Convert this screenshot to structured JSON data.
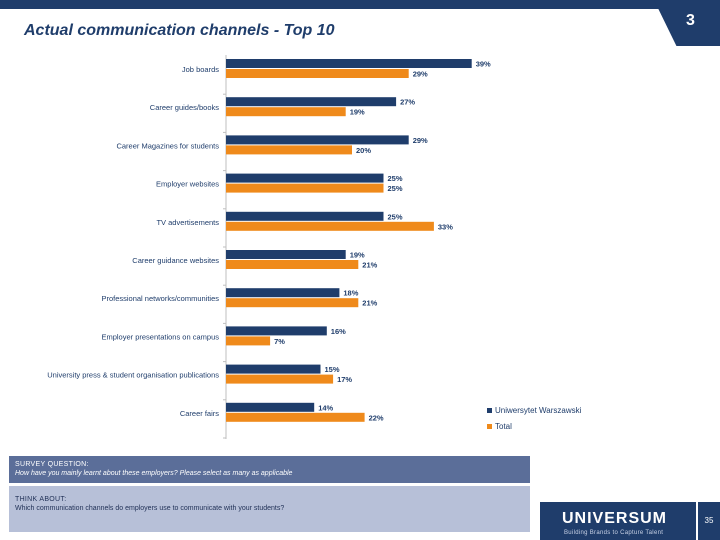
{
  "slide": {
    "title": "Actual communication channels - Top 10",
    "page_number": "3",
    "footer_page": "35"
  },
  "colors": {
    "series_uw": "#1f3d6b",
    "series_total": "#ef8a1b",
    "header": "#1f3d6b"
  },
  "survey": {
    "label": "SURVEY QUESTION:",
    "question": "How have you mainly learnt about these employers? Please select as many as applicable"
  },
  "think": {
    "label": "THINK ABOUT:",
    "text": "Which communication channels do employers use to communicate with your students?"
  },
  "logo": {
    "name": "UNIVERSUM",
    "tagline": "Building Brands to Capture Talent"
  },
  "chart_data": {
    "type": "bar",
    "orientation": "horizontal",
    "categories": [
      "Job boards",
      "Career guides/books",
      "Career Magazines for students",
      "Employer websites",
      "TV advertisements",
      "Career guidance websites",
      "Professional networks/communities",
      "Employer presentations on campus",
      "University press & student organisation publications",
      "Career fairs"
    ],
    "series": [
      {
        "name": "Uniwersytet Warszawski",
        "values": [
          39,
          27,
          29,
          25,
          25,
          19,
          18,
          16,
          15,
          14
        ],
        "labels": [
          "39%",
          "27%",
          "29%",
          "25%",
          "25%",
          "19%",
          "18%",
          "16%",
          "15%",
          "14%"
        ]
      },
      {
        "name": "Total",
        "values": [
          29,
          19,
          20,
          25,
          33,
          21,
          21,
          7,
          17,
          22
        ],
        "labels": [
          "29%",
          "19%",
          "20%",
          "25%",
          "33%",
          "21%",
          "21%",
          "7%",
          "17%",
          "22%"
        ]
      }
    ],
    "xlim": [
      0,
      50
    ],
    "legend": "bottom-right",
    "grid": false
  }
}
